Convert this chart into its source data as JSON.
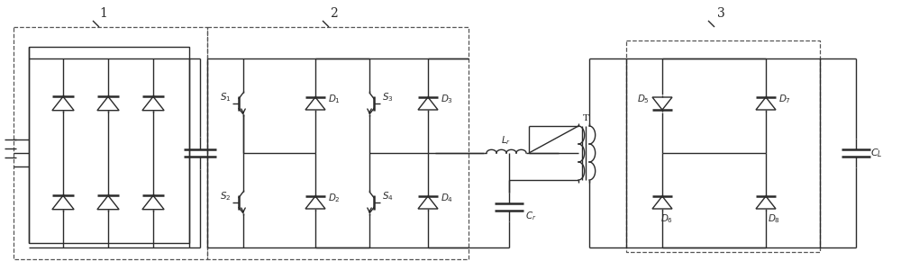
{
  "fig_width": 10.0,
  "fig_height": 3.1,
  "dpi": 100,
  "bg_color": "#ffffff",
  "lc": "#2a2a2a",
  "lw": 1.0,
  "lw_thick": 1.8,
  "lw_dash": 0.9
}
